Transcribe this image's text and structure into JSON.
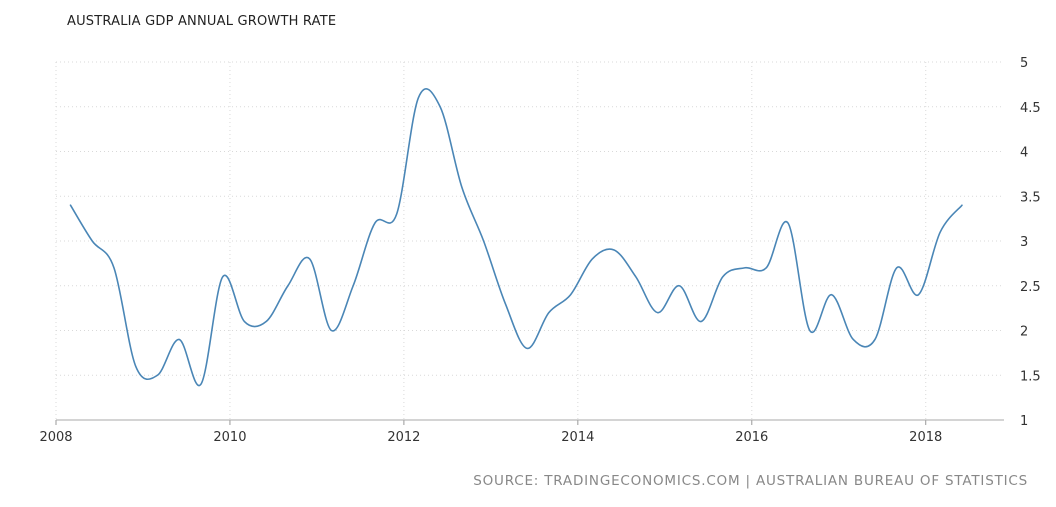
{
  "chart_data": {
    "type": "line",
    "title": "AUSTRALIA GDP ANNUAL GROWTH RATE",
    "xlabel": "",
    "ylabel": "",
    "x_tick_labels": [
      "2008",
      "2010",
      "2012",
      "2014",
      "2016",
      "2018"
    ],
    "y_tick_labels": [
      "1",
      "1.5",
      "2",
      "2.5",
      "3",
      "3.5",
      "4",
      "4.5",
      "5"
    ],
    "xlim": [
      2008,
      2018.9
    ],
    "ylim": [
      1,
      5
    ],
    "grid": true,
    "legend": "none",
    "line_color": "#4a86b6",
    "series": [
      {
        "x": [
          "2008-03",
          "2008-06",
          "2008-09",
          "2008-12",
          "2009-03",
          "2009-06",
          "2009-09",
          "2009-12",
          "2010-03",
          "2010-06",
          "2010-09",
          "2010-12",
          "2011-03",
          "2011-06",
          "2011-09",
          "2011-12",
          "2012-03",
          "2012-06",
          "2012-09",
          "2012-12",
          "2013-03",
          "2013-06",
          "2013-09",
          "2013-12",
          "2014-03",
          "2014-06",
          "2014-09",
          "2014-12",
          "2015-03",
          "2015-06",
          "2015-09",
          "2015-12",
          "2016-03",
          "2016-06",
          "2016-09",
          "2016-12",
          "2017-03",
          "2017-06",
          "2017-09",
          "2017-12",
          "2018-03",
          "2018-06"
        ],
        "values": [
          3.4,
          3.0,
          2.7,
          1.6,
          1.5,
          1.9,
          1.4,
          2.6,
          2.1,
          2.1,
          2.5,
          2.8,
          2.0,
          2.5,
          3.2,
          3.3,
          4.6,
          4.5,
          3.6,
          3.0,
          2.3,
          1.8,
          2.2,
          2.4,
          2.8,
          2.9,
          2.6,
          2.2,
          2.5,
          2.1,
          2.6,
          2.7,
          2.7,
          3.2,
          2.0,
          2.4,
          1.9,
          1.9,
          2.7,
          2.4,
          3.1,
          3.4
        ]
      }
    ]
  },
  "source": "SOURCE: TRADINGECONOMICS.COM | AUSTRALIAN BUREAU OF STATISTICS"
}
